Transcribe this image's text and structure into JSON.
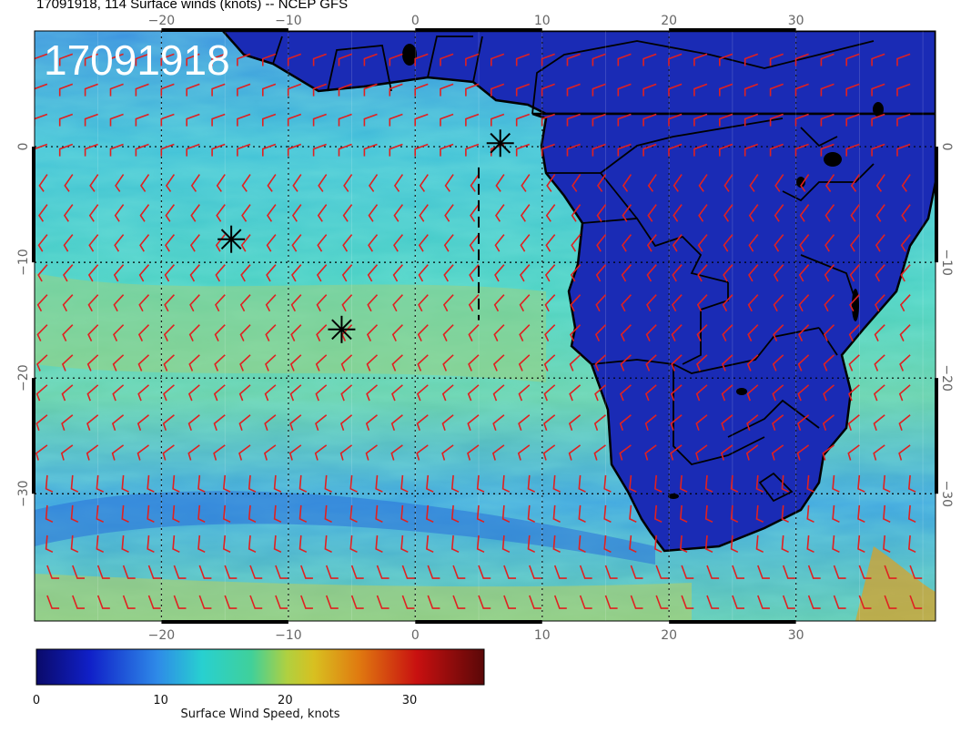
{
  "title": "17091918, 114 Surface winds (knots) -- NCEP GFS",
  "stamp": "17091918",
  "map": {
    "lon_range": [
      -30,
      41
    ],
    "lat_range": [
      -41,
      10
    ],
    "lon_ticks": [
      -20,
      -10,
      0,
      10,
      20,
      30
    ],
    "lat_ticks": [
      0,
      -10,
      -20,
      -30
    ],
    "lon_tick_labels": [
      "−20",
      "−10",
      "0",
      "10",
      "20",
      "30"
    ],
    "lat_tick_labels": [
      "0",
      "−10",
      "−20",
      "−30"
    ],
    "grid": "dotted",
    "barb_color": "#e02020",
    "land_color": "#1a2fb0",
    "ocean_color": "#3aa0d8"
  },
  "markers": [
    {
      "name": "star-marker-1",
      "lon": 6.7,
      "lat": 0.3
    },
    {
      "name": "star-marker-2",
      "lon": -14.5,
      "lat": -8.0
    },
    {
      "name": "star-marker-3",
      "lon": -5.8,
      "lat": -15.8
    }
  ],
  "track": [
    [
      5,
      -1.8
    ],
    [
      5,
      -15.0
    ]
  ],
  "colorbar": {
    "label": "Surface Wind Speed, knots",
    "min": 0,
    "max": 36,
    "ticks": [
      0,
      10,
      20,
      30
    ],
    "tick_labels": [
      "0",
      "10",
      "20",
      "30"
    ]
  }
}
